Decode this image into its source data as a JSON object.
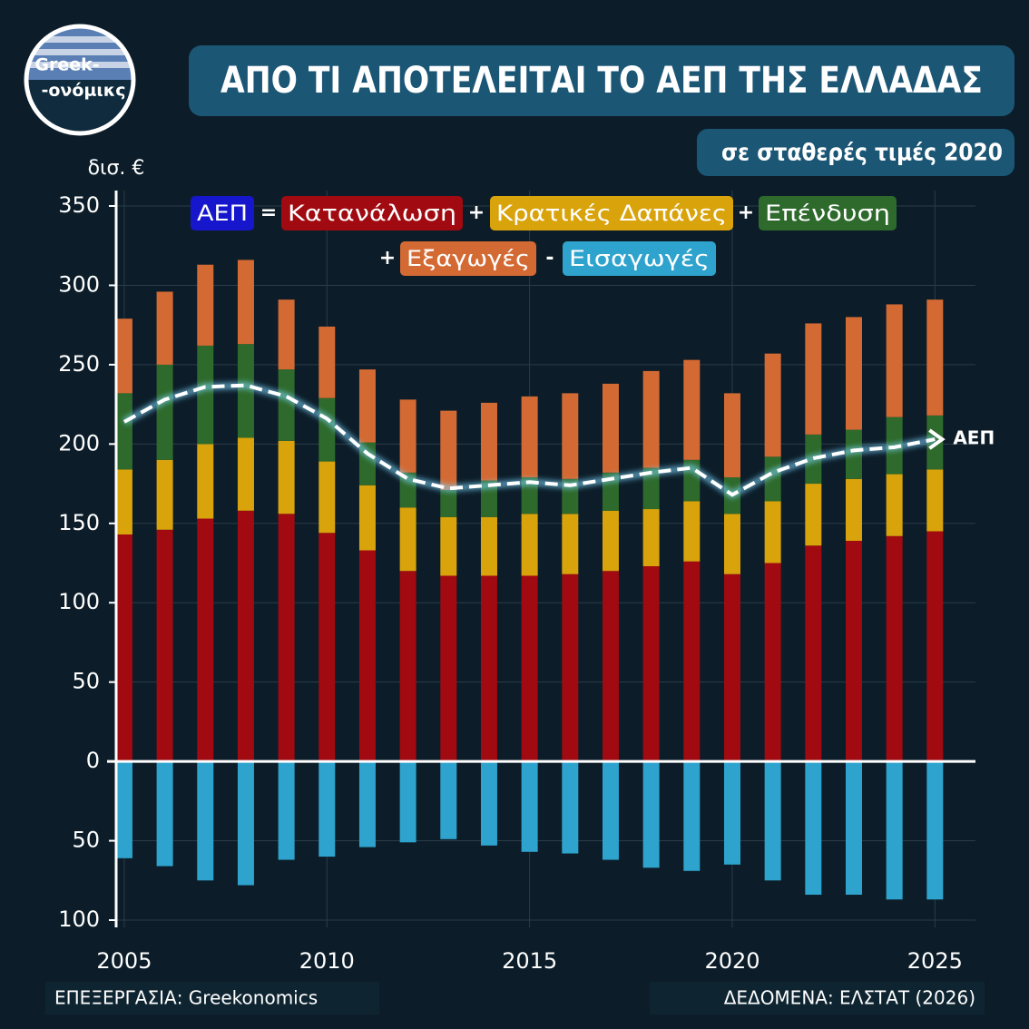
{
  "logo": [
    "Greek-",
    "-ονόμικς"
  ],
  "credits": {
    "processing": "ΕΠΕΞΕΡΓΑΣΙΑ: Greekonomics",
    "source": "ΔΕΔΟΜΕΝΑ: ΕΛΣΤΑΤ (2026)"
  },
  "chart_data": {
    "type": "bar",
    "stacked": true,
    "title": "ΑΠΟ ΤΙ ΑΠΟΤΕΛΕΙΤΑΙ ΤΟ ΑΕΠ ΤΗΣ ΕΛΛΑΔΑΣ",
    "subtitle": "σε σταθερές τιμές 2020",
    "y_label": "δισ. €",
    "formula_operators": [
      "=",
      "+",
      "+",
      "+",
      "-"
    ],
    "x": [
      2005,
      2006,
      2007,
      2008,
      2009,
      2010,
      2011,
      2012,
      2013,
      2014,
      2015,
      2016,
      2017,
      2018,
      2019,
      2020,
      2021,
      2022,
      2023,
      2024,
      2025
    ],
    "xlim": [
      2004.8,
      2026
    ],
    "xticks": [
      2005,
      2010,
      2015,
      2020,
      2025
    ],
    "ylim": [
      -100,
      350
    ],
    "yticks": [
      {
        "value": -100,
        "label": "100"
      },
      {
        "value": -50,
        "label": "50"
      },
      0,
      50,
      100,
      150,
      200,
      250,
      300,
      350
    ],
    "grid": true,
    "series": [
      {
        "name": "Κατανάλωση",
        "color": "#a00a10",
        "values": [
          143,
          146,
          153,
          158,
          156,
          144,
          133,
          120,
          117,
          117,
          117,
          118,
          120,
          123,
          126,
          118,
          125,
          136,
          139,
          142,
          145
        ]
      },
      {
        "name": "Κρατικές Δαπάνες",
        "color": "#d9a30c",
        "values": [
          41,
          44,
          47,
          46,
          46,
          45,
          41,
          40,
          37,
          37,
          39,
          38,
          38,
          36,
          38,
          38,
          39,
          39,
          39,
          39,
          39
        ]
      },
      {
        "name": "Επένδυση",
        "color": "#2e6a2c",
        "values": [
          48,
          60,
          62,
          59,
          45,
          40,
          27,
          22,
          17,
          23,
          23,
          22,
          24,
          26,
          26,
          23,
          28,
          31,
          31,
          36,
          34
        ]
      },
      {
        "name": "Εξαγωγές",
        "color": "#d46a33",
        "values": [
          47,
          46,
          51,
          53,
          44,
          45,
          46,
          46,
          50,
          49,
          51,
          54,
          56,
          61,
          63,
          53,
          65,
          70,
          71,
          71,
          73
        ]
      },
      {
        "name": "Εισαγωγές",
        "color": "#2ea3cd",
        "values": [
          -61,
          -66,
          -75,
          -78,
          -62,
          -60,
          -54,
          -51,
          -49,
          -53,
          -57,
          -58,
          -62,
          -67,
          -69,
          -65,
          -75,
          -84,
          -84,
          -87,
          -87
        ]
      },
      {
        "name": "ΑΕΠ",
        "type": "line",
        "color": "#ffffff",
        "legend_color": "#1616cc",
        "values": [
          214,
          228,
          236,
          237,
          230,
          216,
          194,
          178,
          172,
          174,
          176,
          174,
          178,
          182,
          185,
          168,
          182,
          191,
          196,
          198,
          203
        ]
      }
    ]
  }
}
